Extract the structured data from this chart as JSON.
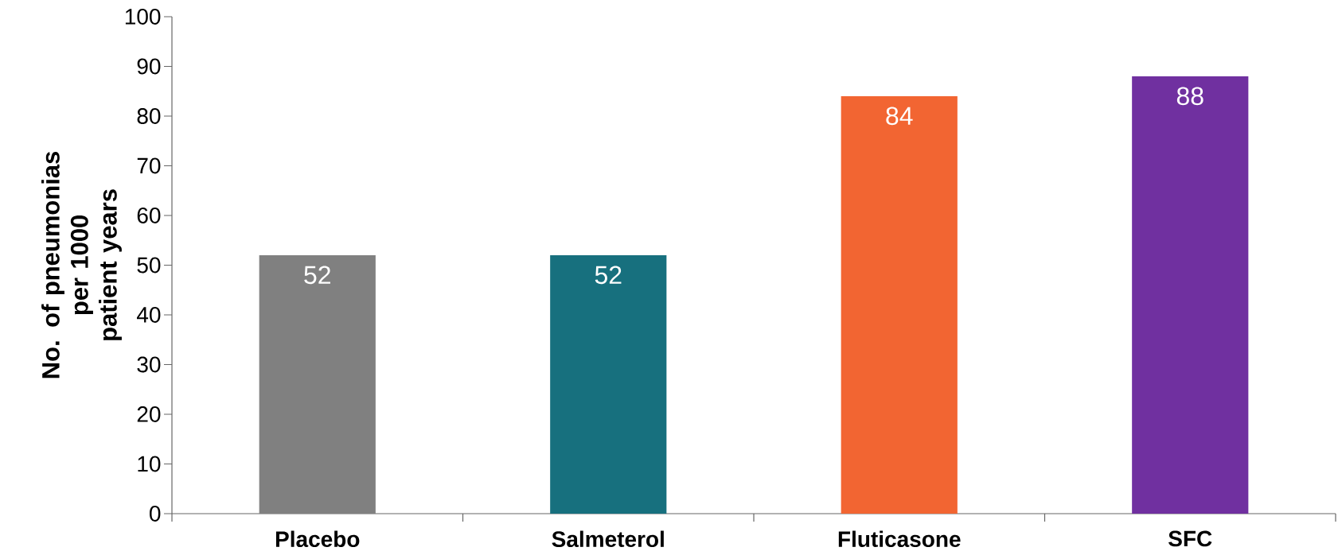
{
  "chart_data": {
    "type": "bar",
    "ylabel": "No. of pneumonias per 1000 patient years",
    "categories": [
      "Placebo",
      "Salmeterol",
      "Fluticasone",
      "SFC"
    ],
    "values": [
      52,
      52,
      84,
      88
    ],
    "colors": [
      "#808080",
      "#17707e",
      "#f26532",
      "#7030a0"
    ],
    "ylim": [
      0,
      100
    ],
    "yticks": [
      0,
      10,
      20,
      30,
      40,
      50,
      60,
      70,
      80,
      90,
      100
    ],
    "data_labels": true,
    "grid": false
  }
}
